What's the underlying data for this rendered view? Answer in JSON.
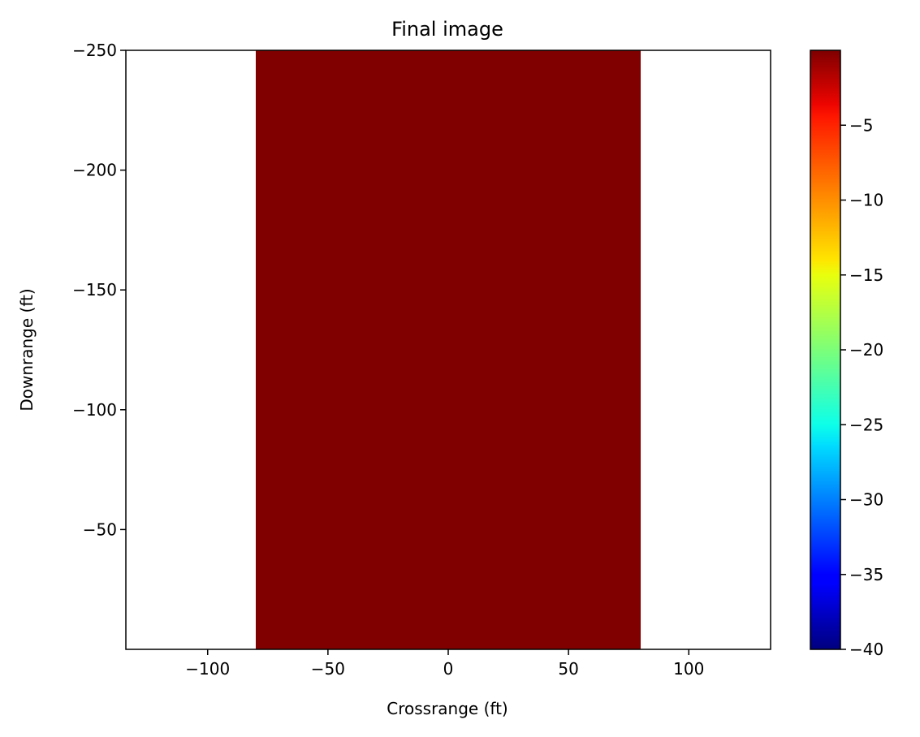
{
  "chart_data": {
    "type": "heatmap",
    "title": "Final image",
    "xlabel": "Crossrange (ft)",
    "ylabel": "Downrange (ft)",
    "xlim": [
      -134,
      134
    ],
    "ylim": [
      0,
      -250
    ],
    "x_ticks": [
      -100,
      -50,
      0,
      50,
      100
    ],
    "x_tick_labels": [
      "−100",
      "−50",
      "0",
      "50",
      "100"
    ],
    "y_ticks": [
      -250,
      -200,
      -150,
      -100,
      -50
    ],
    "y_tick_labels": [
      "−250",
      "−200",
      "−150",
      "−100",
      "−50"
    ],
    "image_extent": {
      "x": [
        -80,
        80
      ],
      "y": [
        0,
        -250
      ]
    },
    "image_value": 0,
    "image_color": "#800000",
    "colormap": "jet",
    "colorbar": {
      "range": [
        -40,
        0
      ],
      "ticks": [
        -40,
        -35,
        -30,
        -25,
        -20,
        -15,
        -10,
        -5
      ],
      "tick_labels": [
        "−40",
        "−35",
        "−30",
        "−25",
        "−20",
        "−15",
        "−10",
        "−5"
      ]
    },
    "grid": false,
    "legend": "none"
  }
}
